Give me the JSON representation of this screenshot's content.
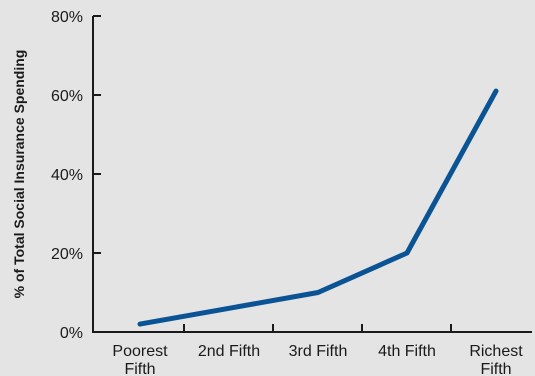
{
  "chart_data": {
    "type": "line",
    "title": "",
    "xlabel": "",
    "ylabel": "% of Total Social Insurance Spending",
    "categories": [
      [
        "Poorest",
        "Fifth"
      ],
      [
        "2nd Fifth"
      ],
      [
        "3rd Fifth"
      ],
      [
        "4th Fifth"
      ],
      [
        "Richest",
        "Fifth"
      ]
    ],
    "series": [
      {
        "values": [
          2,
          6,
          10,
          20,
          61
        ]
      }
    ],
    "ylim": [
      0,
      80
    ],
    "yticks": [
      0,
      20,
      40,
      60,
      80
    ],
    "ytick_labels": [
      "0%",
      "20%",
      "40%",
      "60%",
      "80%"
    ],
    "grid": false,
    "line_color": "#0a5394",
    "axis_color": "#1a1a1a"
  }
}
